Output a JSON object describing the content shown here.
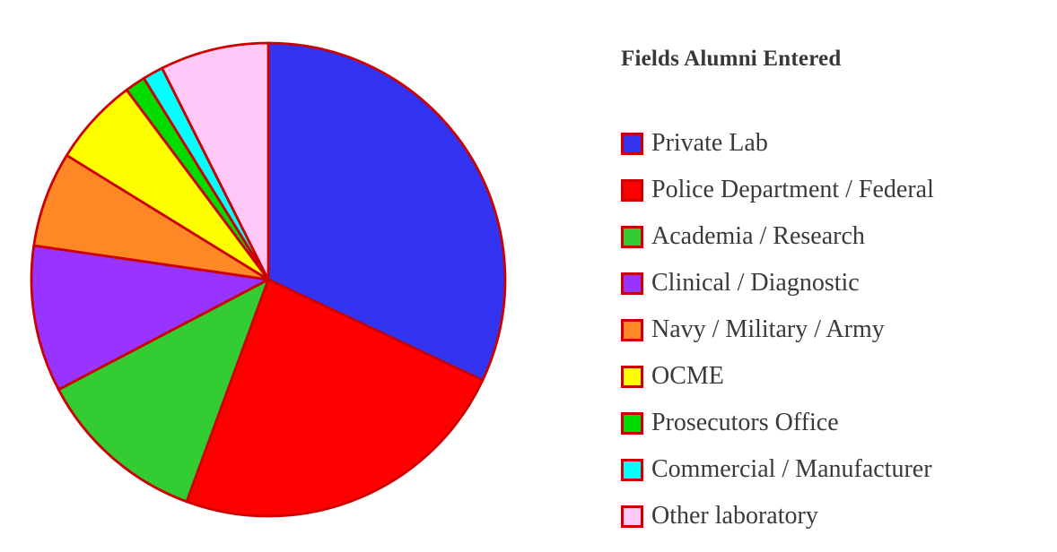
{
  "chart_data": {
    "type": "pie",
    "title": "Fields Alumni Entered",
    "legend_position": "right",
    "start_angle_deg": 0,
    "direction": "clockwise",
    "stroke_color": "#CC0000",
    "slices": [
      {
        "label": "Private Lab",
        "percent": 32.0,
        "color": "#3333F2"
      },
      {
        "label": "Police Department / Federal",
        "percent": 23.6,
        "color": "#FF0000"
      },
      {
        "label": "Academia / Research",
        "percent": 11.7,
        "color": "#33CC33"
      },
      {
        "label": "Clinical / Diagnostic",
        "percent": 10.0,
        "color": "#9933FF"
      },
      {
        "label": "Navy / Military / Army",
        "percent": 6.5,
        "color": "#FF8826"
      },
      {
        "label": "OCME",
        "percent": 6.0,
        "color": "#FFFF00"
      },
      {
        "label": "Prosecutors Office",
        "percent": 1.4,
        "color": "#00DC00"
      },
      {
        "label": "Commercial / Manufacturer",
        "percent": 1.4,
        "color": "#00FFFF"
      },
      {
        "label": "Other laboratory",
        "percent": 7.4,
        "color": "#FFC8F7"
      }
    ],
    "text_color": "#3a3a3a"
  }
}
